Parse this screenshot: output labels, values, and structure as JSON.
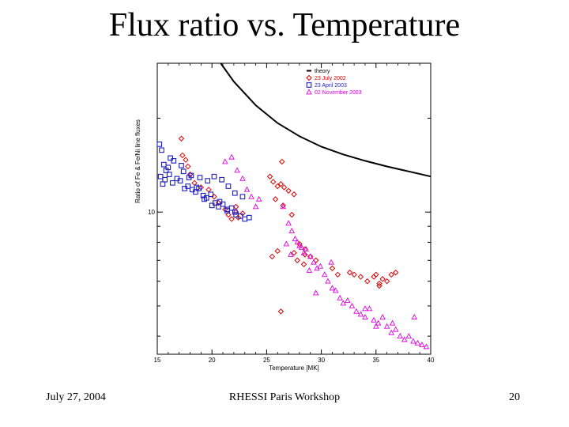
{
  "slide": {
    "title": "Flux ratio vs. Temperature",
    "footer_date": "July 27, 2004",
    "footer_event": "RHESSI Paris Workshop",
    "page_number": "20"
  },
  "chart_data": {
    "type": "scatter",
    "title": "",
    "xlabel": "Temperature [MK]",
    "ylabel": "Ratio of Fe & Fe/Ni line fluxes",
    "xlim": [
      15,
      40
    ],
    "ylim": [
      3.5,
      30
    ],
    "ylog": true,
    "x_ticks": [
      15,
      20,
      25,
      30,
      35,
      40
    ],
    "y_ticks": [
      10
    ],
    "legend_position": "top-right",
    "series": [
      {
        "name": "theory",
        "style": "line",
        "color": "#000000",
        "x": [
          20.8,
          22,
          24,
          26,
          28,
          30,
          32,
          34,
          36,
          38,
          40
        ],
        "y": [
          30,
          26.2,
          22.0,
          19.3,
          17.5,
          16.2,
          15.3,
          14.6,
          14.0,
          13.5,
          13.0
        ]
      },
      {
        "name": "23 July 2002",
        "style": "diamond",
        "color": "#dd0000",
        "x": [
          17.2,
          17.3,
          17.6,
          17.8,
          18.0,
          18.4,
          19.0,
          19.7,
          20.2,
          20.6,
          21.2,
          21.5,
          21.8,
          22.2,
          22.4,
          22.8,
          22.2,
          25.3,
          25.6,
          26.0,
          26.3,
          26.6,
          27.0,
          27.5,
          25.8,
          26.5,
          27.3,
          28.0,
          28.5,
          29.0,
          29.5,
          27.5,
          28.4,
          31.0,
          31.5,
          32.6,
          33.0,
          33.6,
          34.2,
          34.8,
          35.0,
          35.3,
          35.6,
          36.0,
          36.4,
          36.8,
          35.3,
          25.5,
          26.0,
          28.5,
          27.8,
          26.4,
          26.3
        ],
        "y": [
          17.2,
          15.2,
          14.7,
          14.0,
          13.2,
          12.4,
          12.0,
          11.8,
          11.2,
          10.7,
          10.2,
          9.8,
          9.5,
          10.0,
          9.6,
          9.9,
          10.4,
          13.0,
          12.5,
          12.1,
          12.3,
          12.0,
          11.7,
          11.4,
          11.0,
          10.5,
          9.8,
          7.9,
          7.6,
          7.2,
          7.0,
          7.4,
          6.8,
          6.6,
          6.3,
          6.4,
          6.3,
          6.2,
          6.0,
          6.2,
          6.3,
          5.9,
          6.1,
          6.0,
          6.3,
          6.4,
          5.8,
          7.2,
          7.5,
          7.3,
          7.0,
          14.5,
          4.8
        ]
      },
      {
        "name": "23 April 2003",
        "style": "square",
        "color": "#1f1fc0",
        "x": [
          15.2,
          15.4,
          15.6,
          15.8,
          16.0,
          15.3,
          15.7,
          16.1,
          16.4,
          16.8,
          17.1,
          17.5,
          17.8,
          18.2,
          18.5,
          18.8,
          19.2,
          19.5,
          19.9,
          20.3,
          20.6,
          21.0,
          21.4,
          21.8,
          22.2,
          22.6,
          23.0,
          23.4,
          17.4,
          18.1,
          18.9,
          19.6,
          20.2,
          20.9,
          21.5,
          22.1,
          22.8,
          16.5,
          17.2,
          17.9,
          18.6,
          19.3,
          20.0,
          20.7,
          21.4,
          22.1,
          16.2,
          15.5
        ],
        "y": [
          16.5,
          15.8,
          14.2,
          13.6,
          13.9,
          13.0,
          12.7,
          13.2,
          12.4,
          12.8,
          12.6,
          11.9,
          12.1,
          11.8,
          11.6,
          11.9,
          11.3,
          11.1,
          11.4,
          10.7,
          10.4,
          10.6,
          10.1,
          10.3,
          9.8,
          9.7,
          9.5,
          9.6,
          13.5,
          13.1,
          12.9,
          12.6,
          13.0,
          12.7,
          12.1,
          11.5,
          11.2,
          14.6,
          14.1,
          12.9,
          12.0,
          11.0,
          10.5,
          10.8,
          10.2,
          10.0,
          14.9,
          12.3
        ]
      },
      {
        "name": "02 November 2003",
        "style": "triangle",
        "color": "#e000e0",
        "x": [
          21.2,
          21.8,
          22.3,
          22.8,
          23.2,
          23.6,
          24.0,
          24.3,
          26.5,
          27.0,
          27.3,
          27.6,
          27.8,
          28.0,
          28.2,
          28.4,
          28.6,
          29.0,
          29.3,
          29.6,
          29.9,
          30.3,
          30.6,
          31.0,
          31.3,
          31.7,
          32.0,
          32.4,
          32.8,
          33.2,
          33.6,
          34.0,
          34.4,
          34.8,
          35.2,
          35.6,
          36.0,
          36.4,
          36.8,
          37.2,
          37.6,
          38.0,
          38.4,
          38.8,
          39.2,
          39.6,
          35.0,
          34.0,
          36.5,
          38.5,
          30.9,
          28.9,
          27.2,
          29.5,
          26.8
        ],
        "y": [
          14.5,
          15.0,
          13.6,
          12.8,
          11.8,
          11.2,
          10.4,
          11.0,
          10.4,
          9.2,
          8.7,
          8.2,
          8.0,
          7.8,
          7.7,
          7.4,
          7.6,
          7.2,
          6.9,
          6.6,
          6.7,
          6.3,
          6.0,
          5.7,
          5.6,
          5.3,
          5.1,
          5.2,
          5.0,
          4.8,
          4.7,
          4.6,
          4.9,
          4.5,
          4.4,
          4.6,
          4.3,
          4.1,
          4.2,
          4.0,
          3.9,
          4.0,
          3.85,
          3.8,
          3.75,
          3.7,
          4.3,
          4.9,
          4.4,
          4.6,
          6.9,
          6.5,
          7.3,
          5.5,
          7.9
        ]
      }
    ]
  }
}
